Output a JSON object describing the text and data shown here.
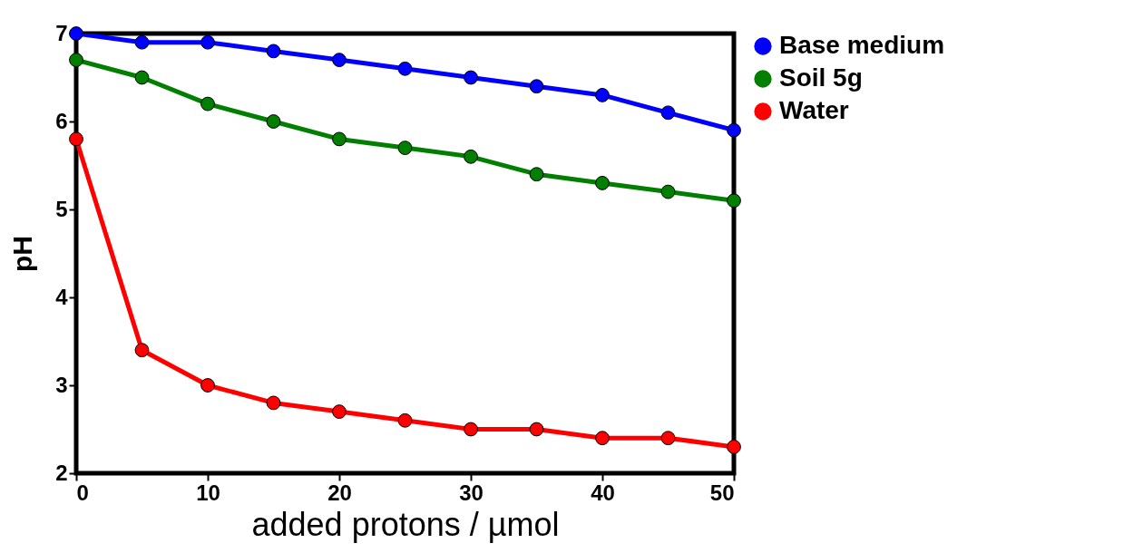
{
  "chart_data": {
    "type": "line",
    "xlabel": "added protons / µmol",
    "ylabel": "pH",
    "x": [
      0,
      5,
      10,
      15,
      20,
      25,
      30,
      35,
      40,
      45,
      50
    ],
    "series": [
      {
        "name": "Base medium",
        "color": "#0000ff",
        "values": [
          7.0,
          6.9,
          6.9,
          6.8,
          6.7,
          6.6,
          6.5,
          6.4,
          6.3,
          6.1,
          5.9
        ]
      },
      {
        "name": "Soil 5g",
        "color": "#007f00",
        "values": [
          6.7,
          6.5,
          6.2,
          6.0,
          5.8,
          5.7,
          5.6,
          5.4,
          5.3,
          5.2,
          5.1
        ]
      },
      {
        "name": "Water",
        "color": "#ff0000",
        "values": [
          5.8,
          3.4,
          3.0,
          2.8,
          2.7,
          2.6,
          2.5,
          2.5,
          2.4,
          2.4,
          2.3
        ]
      }
    ],
    "xlim": [
      0,
      50
    ],
    "xticks": [
      0,
      10,
      20,
      30,
      40,
      50
    ],
    "ylim": [
      2,
      7
    ],
    "yticks": [
      2,
      3,
      4,
      5,
      6,
      7
    ],
    "grid": false,
    "legend": "top right",
    "marker": "circle",
    "line_style": "solid"
  }
}
